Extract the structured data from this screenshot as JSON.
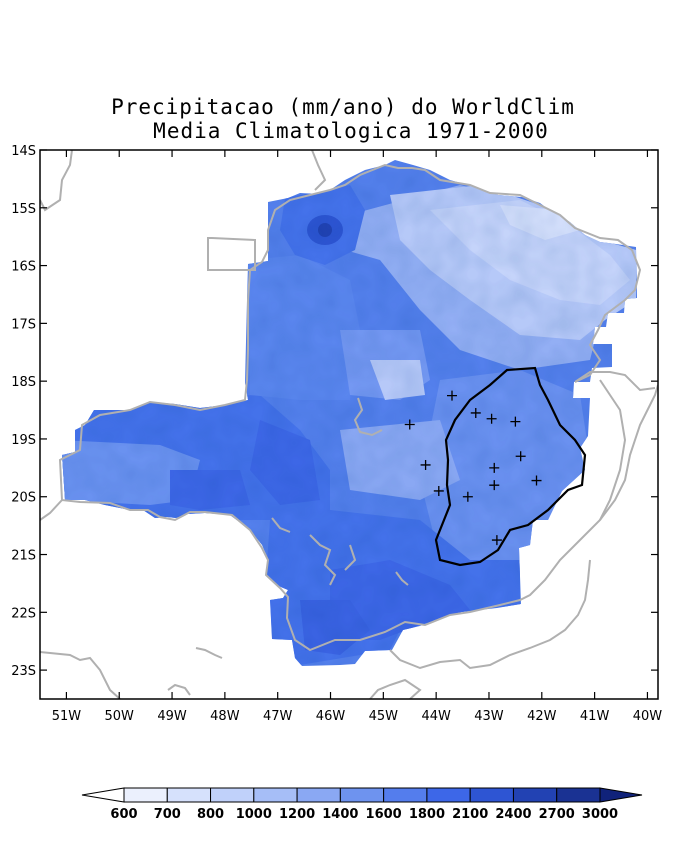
{
  "title_line1": "Precipitacao (mm/ano) do WorldClim",
  "title_line2": "Media Climatologica 1971-2000",
  "map": {
    "lon_range": [
      -51.5,
      -39.8
    ],
    "lat_range": [
      -23.5,
      -14.0
    ],
    "lat_ticks": [
      "14S",
      "15S",
      "16S",
      "17S",
      "18S",
      "19S",
      "20S",
      "21S",
      "22S",
      "23S"
    ],
    "lon_ticks": [
      "51W",
      "50W",
      "49W",
      "48W",
      "47W",
      "46W",
      "45W",
      "44W",
      "43W",
      "42W",
      "41W",
      "40W"
    ],
    "land_color": "#ffffff",
    "border_color": "#b0b0b0",
    "basin_color": "#000000"
  },
  "stations": [
    {
      "lon": -44.5,
      "lat": -18.75
    },
    {
      "lon": -43.7,
      "lat": -18.25
    },
    {
      "lon": -43.25,
      "lat": -18.55
    },
    {
      "lon": -42.95,
      "lat": -18.65
    },
    {
      "lon": -42.5,
      "lat": -18.7
    },
    {
      "lon": -44.2,
      "lat": -19.45
    },
    {
      "lon": -42.9,
      "lat": -19.5
    },
    {
      "lon": -42.4,
      "lat": -19.3
    },
    {
      "lon": -43.95,
      "lat": -19.9
    },
    {
      "lon": -42.9,
      "lat": -19.8
    },
    {
      "lon": -43.4,
      "lat": -20.0
    },
    {
      "lon": -42.1,
      "lat": -19.72
    },
    {
      "lon": -42.85,
      "lat": -20.75
    }
  ],
  "colorbar": {
    "labels": [
      "600",
      "700",
      "800",
      "1000",
      "1200",
      "1400",
      "1600",
      "1800",
      "2100",
      "2400",
      "2700",
      "3000"
    ],
    "colors": [
      "#ffffff",
      "#ebf0fd",
      "#d6e1fc",
      "#c0d1fa",
      "#a6bef7",
      "#8aa8f3",
      "#6e93ef",
      "#547ded",
      "#3d67e8",
      "#2e55d3",
      "#2242b3",
      "#1a3293",
      "#10227a"
    ]
  }
}
